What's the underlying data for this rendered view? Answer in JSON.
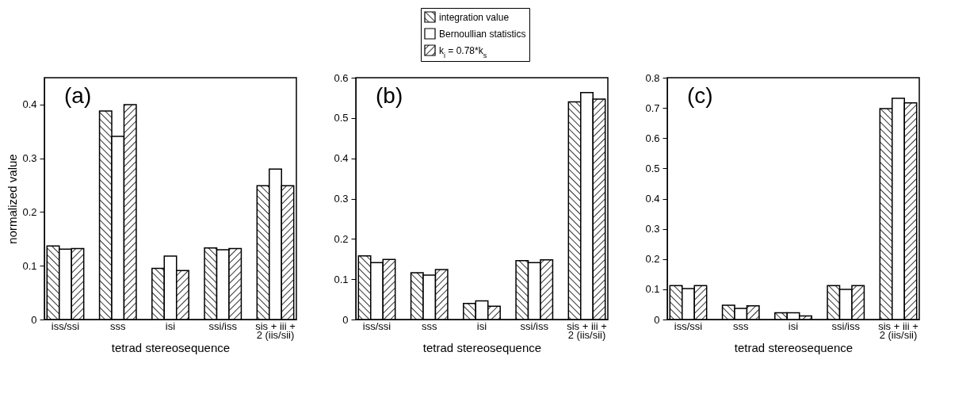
{
  "chart_data": [
    {
      "type": "bar",
      "annotations": [
        "(a)"
      ],
      "xlabel": "tetrad stereosequence",
      "ylabel": "normalized value",
      "categories": [
        "iss/ssi",
        "sss",
        "isi",
        "ssi/iss",
        "sis + iii + 2 (iis/sii)"
      ],
      "ylim": [
        0,
        0.45
      ],
      "yticks": [
        0,
        0.1,
        0.2,
        0.3,
        0.4
      ],
      "legend": "top",
      "series": [
        {
          "name": "integration value",
          "color": "#000000",
          "values": [
            0.137,
            0.388,
            0.095,
            0.133,
            0.249
          ]
        },
        {
          "name": "Bernoullian statistics",
          "color": "#ffffff",
          "values": [
            0.131,
            0.341,
            0.118,
            0.13,
            0.28
          ]
        },
        {
          "name": "k$_{i}$ = 0.78*k$_{s}$",
          "color": "#000000",
          "values": [
            0.132,
            0.4,
            0.091,
            0.132,
            0.249
          ]
        }
      ]
    },
    {
      "type": "bar",
      "annotations": [
        "(b)"
      ],
      "xlabel": "tetrad stereosequence",
      "categories": [
        "iss/ssi",
        "sss",
        "isi",
        "ssi/iss",
        "sis + iii + 2 (iis/sii)"
      ],
      "ylim": [
        0,
        0.6
      ],
      "yticks": [
        0,
        0.1,
        0.2,
        0.3,
        0.4,
        0.5,
        0.6
      ],
      "series": [
        {
          "color": "#000000",
          "values": [
            0.158,
            0.116,
            0.04,
            0.146,
            0.54
          ]
        },
        {
          "color": "#ffffff",
          "values": [
            0.141,
            0.11,
            0.046,
            0.141,
            0.563
          ]
        },
        {
          "color": "#000000",
          "values": [
            0.149,
            0.124,
            0.033,
            0.148,
            0.547
          ]
        }
      ]
    },
    {
      "type": "bar",
      "annotations": [
        "(c)"
      ],
      "xlabel": "tetrad stereosequence",
      "categories": [
        "iss/ssi",
        "sss",
        "isi",
        "ssi/iss",
        "sis + iii + 2 (iis/sii)"
      ],
      "ylim": [
        0,
        0.8
      ],
      "yticks": [
        0,
        0.1,
        0.2,
        0.3,
        0.4,
        0.5,
        0.6,
        0.7,
        0.8
      ],
      "series": [
        {
          "color": "#000000",
          "values": [
            0.112,
            0.047,
            0.022,
            0.112,
            0.698
          ]
        },
        {
          "color": "#ffffff",
          "values": [
            0.102,
            0.037,
            0.022,
            0.1,
            0.732
          ]
        },
        {
          "color": "#000000",
          "values": [
            0.112,
            0.045,
            0.012,
            0.112,
            0.717
          ]
        }
      ]
    }
  ]
}
